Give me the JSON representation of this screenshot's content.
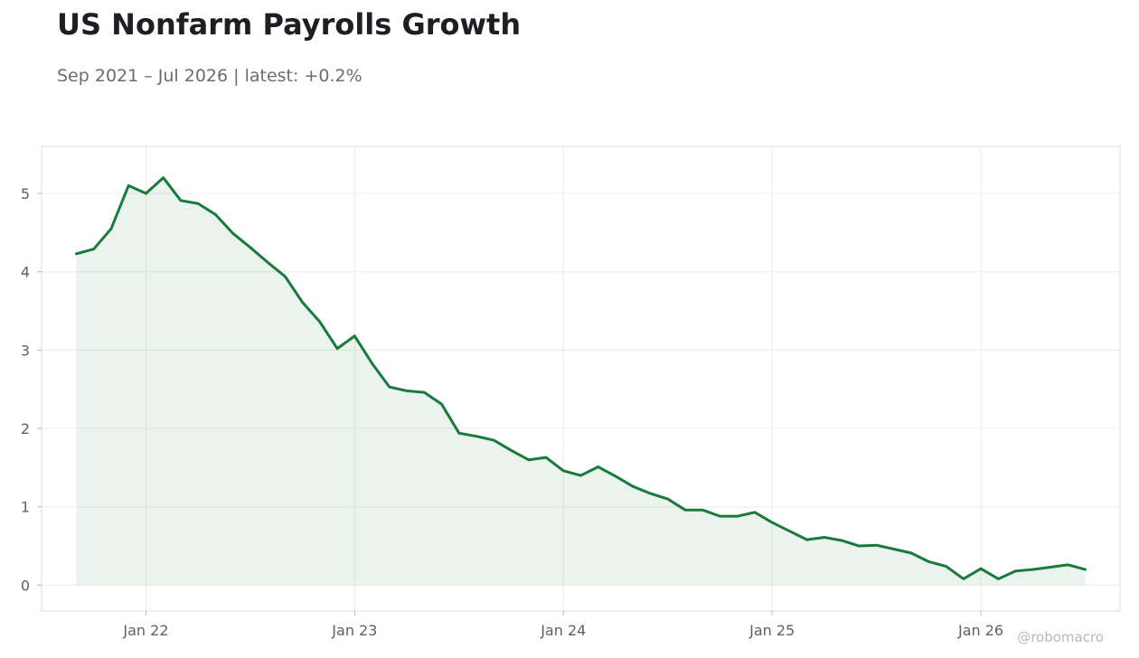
{
  "header": {
    "title": "US Nonfarm Payrolls Growth",
    "subtitle": "Sep 2021 – Jul 2026 | latest: +0.2%"
  },
  "watermark": "@robomacro",
  "colors": {
    "line": "#1a7a3c",
    "fill": "#1a7a3c",
    "grid": "#ececec",
    "frame": "#dcdcdc"
  },
  "chart_data": {
    "type": "area",
    "title": "US Nonfarm Payrolls Growth",
    "xlabel": "",
    "ylabel": "",
    "grid": true,
    "xlim": [
      "2021-07",
      "2026-09"
    ],
    "ylim": [
      -0.33,
      5.6
    ],
    "x_ticks": [
      {
        "date": "2022-01",
        "label": "Jan 22"
      },
      {
        "date": "2023-01",
        "label": "Jan 23"
      },
      {
        "date": "2024-01",
        "label": "Jan 24"
      },
      {
        "date": "2025-01",
        "label": "Jan 25"
      },
      {
        "date": "2026-01",
        "label": "Jan 26"
      }
    ],
    "y_ticks": [
      0,
      1,
      2,
      3,
      4,
      5
    ],
    "series": [
      {
        "x": [
          "2021-09",
          "2021-10",
          "2021-11",
          "2021-12",
          "2022-01",
          "2022-02",
          "2022-03",
          "2022-04",
          "2022-05",
          "2022-06",
          "2022-07",
          "2022-08",
          "2022-09",
          "2022-10",
          "2022-11",
          "2022-12",
          "2023-01",
          "2023-02",
          "2023-03",
          "2023-04",
          "2023-05",
          "2023-06",
          "2023-07",
          "2023-08",
          "2023-09",
          "2023-10",
          "2023-11",
          "2023-12",
          "2024-01",
          "2024-02",
          "2024-03",
          "2024-04",
          "2024-05",
          "2024-06",
          "2024-07",
          "2024-08",
          "2024-09",
          "2024-10",
          "2024-11",
          "2024-12",
          "2025-01",
          "2025-02",
          "2025-03",
          "2025-04",
          "2025-05",
          "2025-06",
          "2025-07",
          "2025-08",
          "2025-09",
          "2025-10",
          "2025-11",
          "2025-12",
          "2026-01",
          "2026-02",
          "2026-03",
          "2026-04",
          "2026-05",
          "2026-06",
          "2026-07"
        ],
        "values": [
          4.23,
          4.29,
          4.55,
          5.1,
          5.0,
          5.2,
          4.91,
          4.87,
          4.73,
          4.49,
          4.31,
          4.12,
          3.94,
          3.61,
          3.36,
          3.02,
          3.18,
          2.83,
          2.53,
          2.48,
          2.46,
          2.31,
          1.94,
          1.9,
          1.85,
          1.72,
          1.6,
          1.63,
          1.46,
          1.4,
          1.51,
          1.39,
          1.26,
          1.17,
          1.1,
          0.96,
          0.96,
          0.88,
          0.88,
          0.93,
          0.8,
          0.69,
          0.58,
          0.61,
          0.57,
          0.5,
          0.51,
          0.46,
          0.41,
          0.3,
          0.24,
          0.08,
          0.21,
          0.08,
          0.18,
          0.2,
          0.23,
          0.26,
          0.2
        ]
      }
    ]
  }
}
